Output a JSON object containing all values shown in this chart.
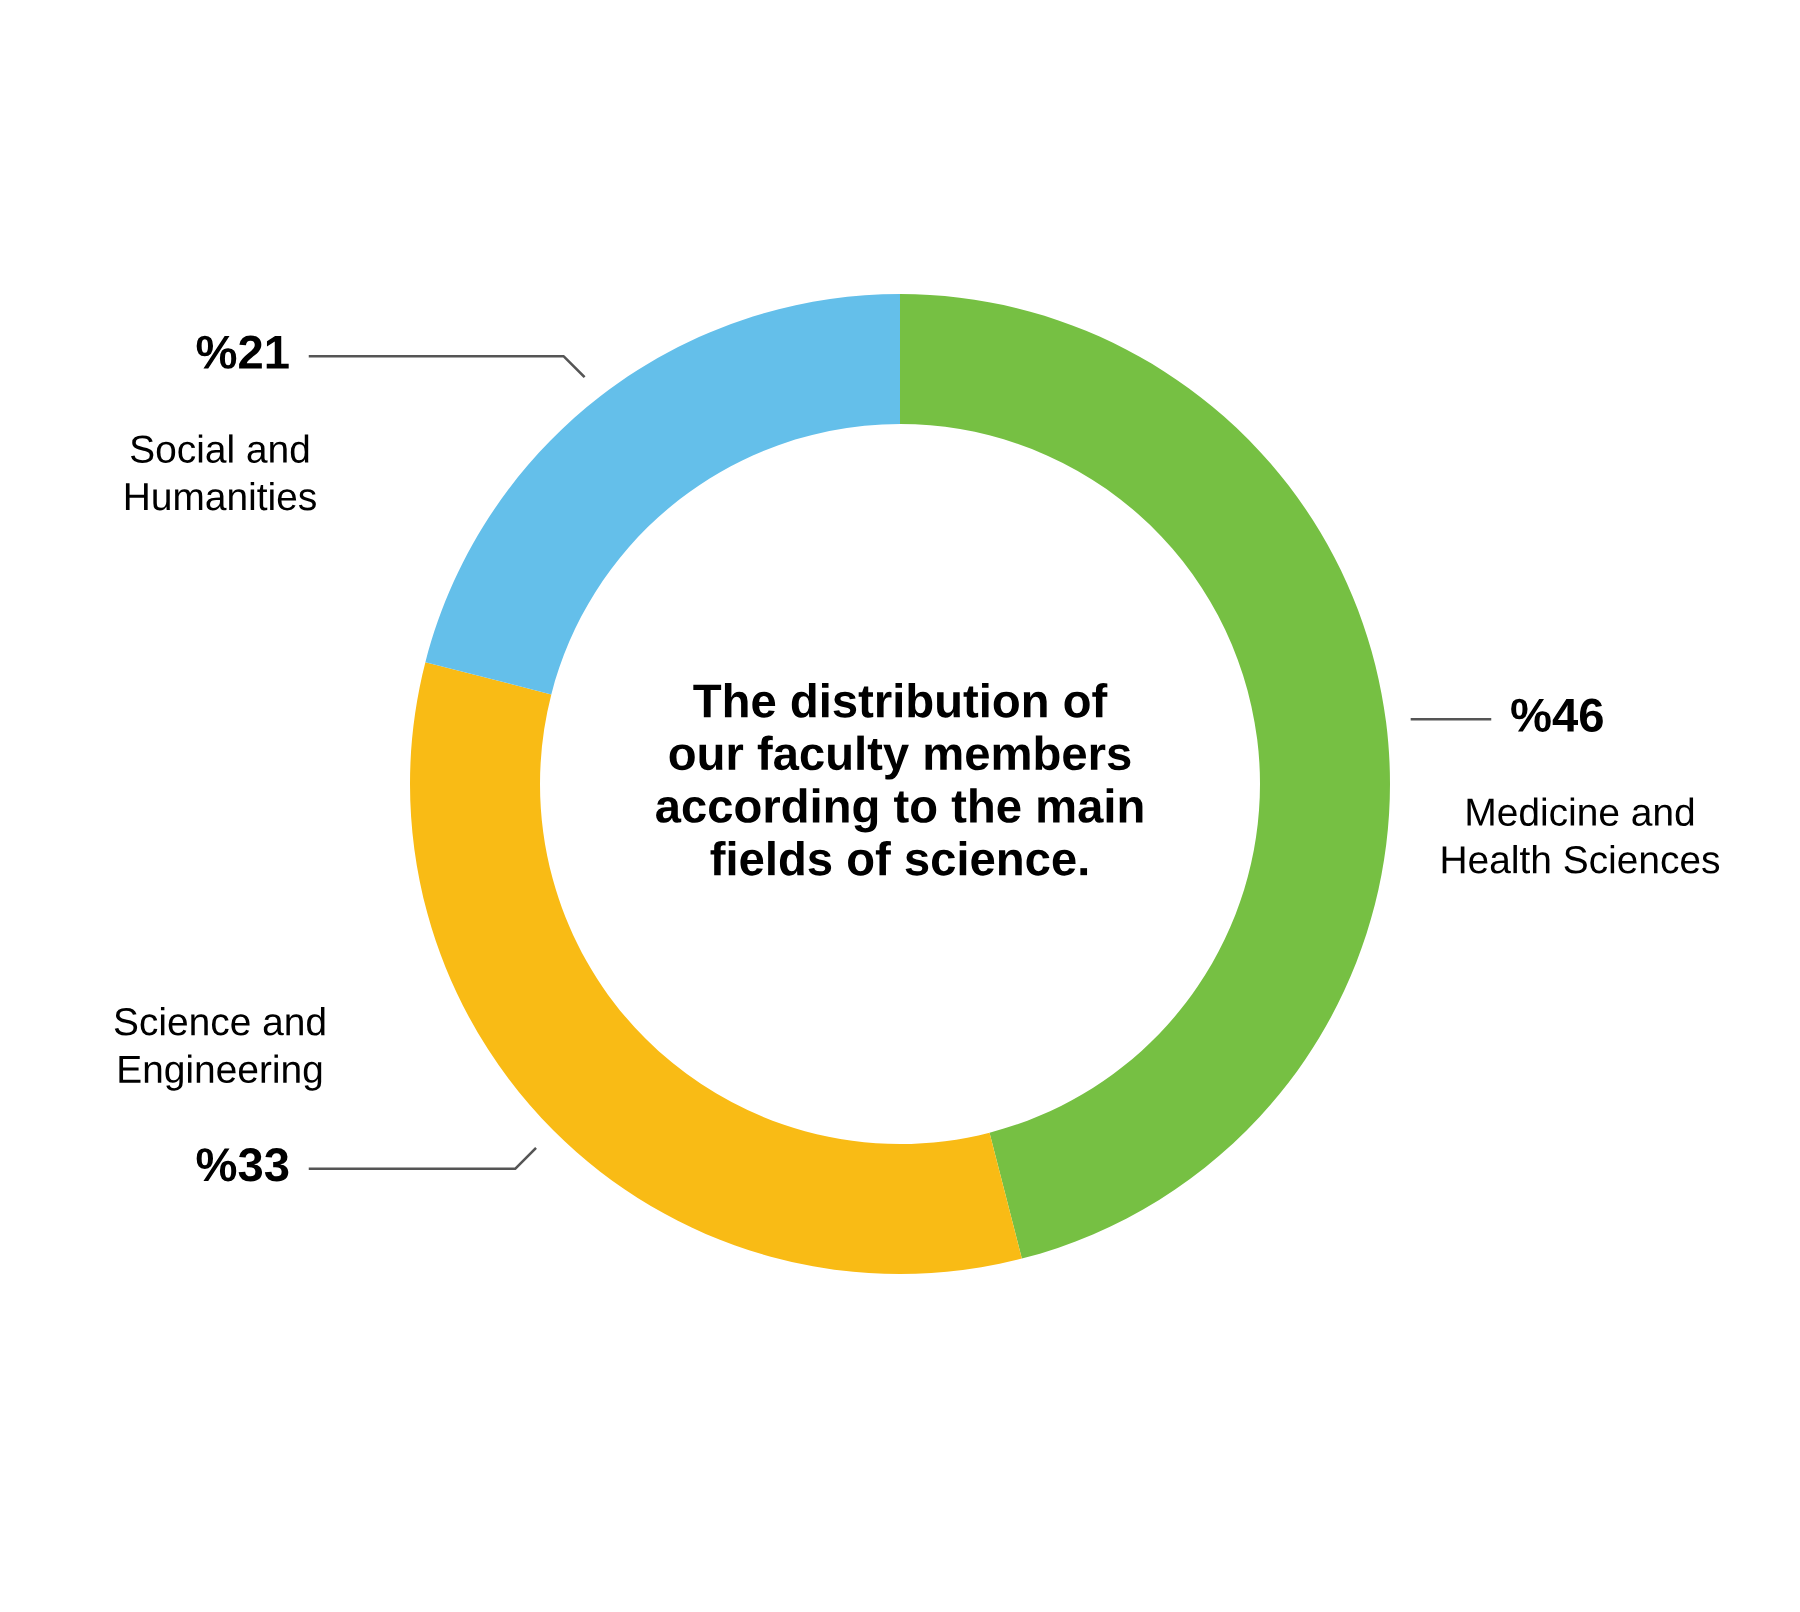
{
  "chart_data": {
    "type": "donut",
    "title": "The distribution of\nour faculty members\naccording to the main\nfields of science.",
    "categories": [
      "Medicine and\nHealth Sciences",
      "Science and\nEngineering",
      "Social and\nHumanities"
    ],
    "values": [
      46,
      33,
      21
    ],
    "value_labels": [
      "%46",
      "%33",
      "%21"
    ],
    "colors": [
      "#76c043",
      "#f9bb15",
      "#64bfea"
    ]
  }
}
